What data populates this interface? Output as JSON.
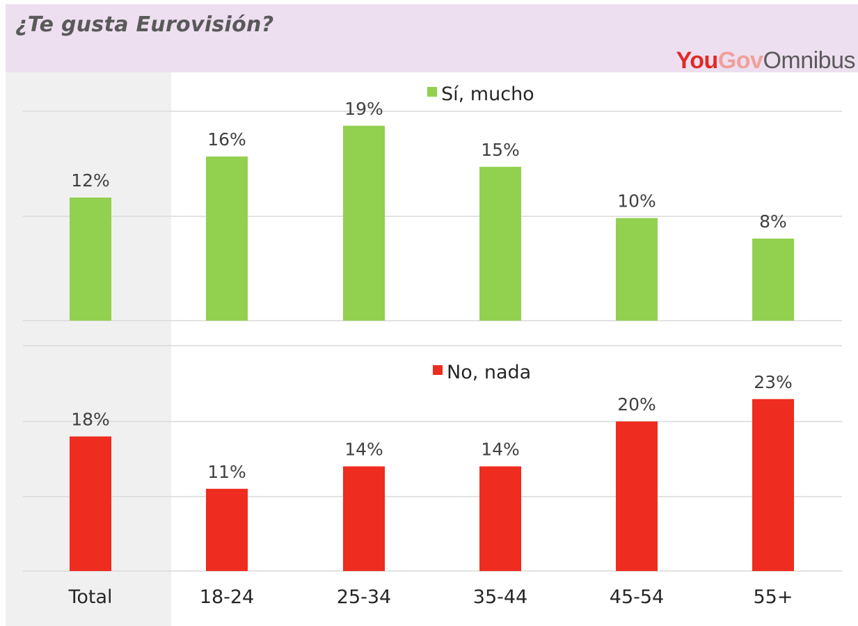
{
  "header": {
    "title": "¿Te gusta Eurovisión?",
    "brand": {
      "part1": "You",
      "part2": "Gov",
      "part3": "Omnibus"
    }
  },
  "colors": {
    "green": "#92d050",
    "red": "#ee2c1f",
    "header_bg": "#eddff0",
    "total_band": "#f0f0f0",
    "text": "#404040",
    "grid": "#d9d9d9"
  },
  "chart_data": [
    {
      "type": "bar",
      "categories": [
        "Total",
        "18-24",
        "25-34",
        "35-44",
        "45-54",
        "55+"
      ],
      "series": [
        {
          "name": "Sí, mucho",
          "values": [
            12,
            16,
            19,
            15,
            10,
            8
          ]
        }
      ],
      "data_labels": [
        "12%",
        "16%",
        "19%",
        "15%",
        "10%",
        "8%"
      ],
      "ylim": [
        0,
        20
      ],
      "grid": true,
      "legend": "top-center"
    },
    {
      "type": "bar",
      "categories": [
        "Total",
        "18-24",
        "25-34",
        "35-44",
        "45-54",
        "55+"
      ],
      "series": [
        {
          "name": "No, nada",
          "values": [
            18,
            11,
            14,
            14,
            20,
            23
          ]
        }
      ],
      "data_labels": [
        "18%",
        "11%",
        "14%",
        "14%",
        "20%",
        "23%"
      ],
      "ylim": [
        0,
        30
      ],
      "grid": true,
      "legend": "top-center"
    }
  ]
}
